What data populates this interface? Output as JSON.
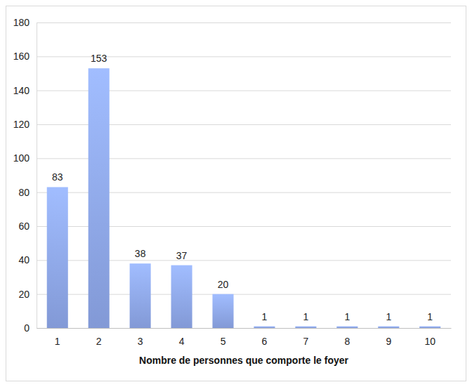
{
  "chart_data": {
    "type": "bar",
    "x_label": "Nombre de personnes que comporte le foyer",
    "categories": [
      "1",
      "2",
      "3",
      "4",
      "5",
      "6",
      "7",
      "8",
      "9",
      "10"
    ],
    "values": [
      83,
      153,
      38,
      37,
      20,
      1,
      1,
      1,
      1,
      1
    ],
    "color": "#8ea7ea",
    "ylim": [
      0,
      180
    ],
    "yticks": [
      0,
      20,
      40,
      60,
      80,
      100,
      120,
      140,
      160,
      180
    ],
    "grid": true,
    "data_labels": true
  }
}
